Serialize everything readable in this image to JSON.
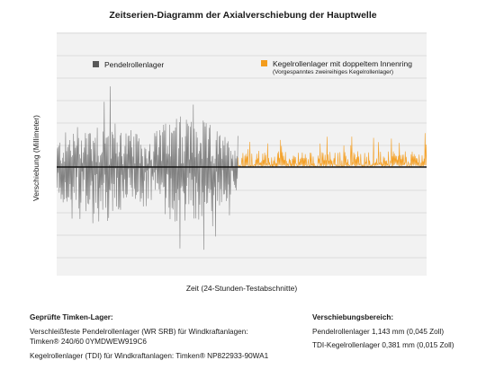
{
  "title": "Zeitserien-Diagramm der Axialverschiebung der Hauptwelle",
  "chart_data": {
    "type": "line",
    "xlabel": "Zeit (24-Stunden-Testabschnitte)",
    "ylabel": "Verschiebung (Millimeter)",
    "grid": true,
    "legend": [
      {
        "name": "Pendelrollenlager",
        "color": "#595959"
      },
      {
        "name": "Kegelrollenlager mit doppeltem Innenring",
        "note": "(Vorgespanntes zweireihiges Kegelrollenlager)",
        "color": "#f39c1c"
      }
    ],
    "series": [
      {
        "name": "Pendelrollenlager",
        "color": "#7a7a7a",
        "x_fraction": [
          0,
          0.49
        ],
        "amplitude_range_mm": 1.143,
        "signal": "bipolar"
      },
      {
        "name": "Kegelrollenlager mit doppeltem Innenring",
        "color": "#f39c1c",
        "x_fraction": [
          0.49,
          1.0
        ],
        "amplitude_range_mm": 0.381,
        "signal": "upper"
      }
    ],
    "colors": {
      "baseline": "#111111",
      "grid": "#dcdcdc",
      "plot_bg": "#f2f2f2"
    }
  },
  "info_left": {
    "heading": "Geprüfte Timken-Lager:",
    "line1": "Verschleißfeste Pendelrollenlager (WR SRB) für Windkraftanlagen:",
    "line2": "Timken® 240/60 0YMDWEW919C6",
    "line3": "Kegelrollenlager (TDI) für Windkraftanlagen: Timken® NP822933-90WA1"
  },
  "info_right": {
    "heading": "Verschiebungsbereich:",
    "line1": "Pendelrollenlager 1,143 mm (0,045 Zoll)",
    "line2": "TDI-Kegelrollenlager 0,381 mm (0,015 Zoll)"
  }
}
